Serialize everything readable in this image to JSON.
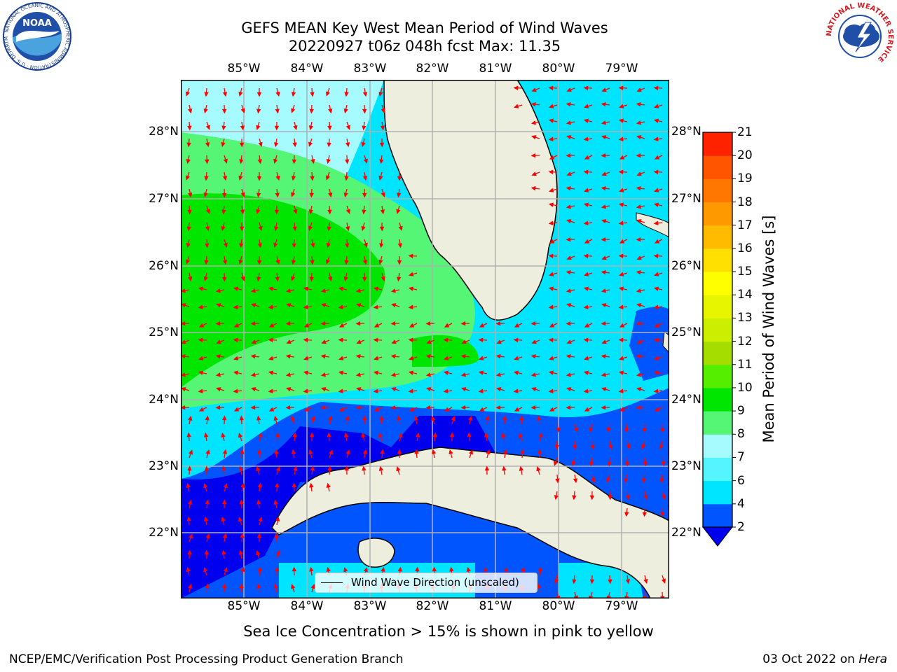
{
  "title": {
    "line1": "GEFS MEAN Key West Mean Period of Wind Waves",
    "line2": "20220927 t06z 048h fcst   Max: 11.35"
  },
  "map": {
    "lon_ticks": [
      "85°W",
      "84°W",
      "83°W",
      "82°W",
      "81°W",
      "80°W",
      "79°W"
    ],
    "lat_ticks": [
      "28°N",
      "27°N",
      "26°N",
      "25°N",
      "24°N",
      "23°N",
      "22°N"
    ],
    "legend_label": "Wind Wave Direction (unscaled)",
    "land_color": "#eeeede",
    "grid_color": "#b0b0b0"
  },
  "colorbar": {
    "label": "Mean Period of Wind Waves [s]",
    "ticks": [
      "2",
      "4",
      "6",
      "7",
      "8",
      "9",
      "10",
      "11",
      "12",
      "13",
      "14",
      "15",
      "16",
      "17",
      "18",
      "19",
      "20",
      "21"
    ],
    "colors": [
      "#0055ff",
      "#00e5ff",
      "#55f5ff",
      "#a5fbff",
      "#55f575",
      "#00e600",
      "#55ee00",
      "#a5dd00",
      "#ccee00",
      "#e8f500",
      "#ffff00",
      "#ffe000",
      "#ffbb00",
      "#ff9900",
      "#ff7700",
      "#ff5500",
      "#ff2200"
    ],
    "extend_color": "#0000ee"
  },
  "footer": {
    "note": "Sea Ice Concentration > 15% is shown in pink to yellow",
    "left": "NCEP/EMC/Verification Post Processing Product Generation Branch",
    "right_date": "03 Oct 2022 on ",
    "right_host": "Hera"
  },
  "logos": {
    "noaa_text": "NOAA",
    "noaa_ring": "NATIONAL OCEANIC AND ATMOSPHERIC ADMINISTRATION · U.S. DEPARTMENT OF COMMERCE",
    "nws_ring": "NATIONAL WEATHER SERVICE"
  }
}
